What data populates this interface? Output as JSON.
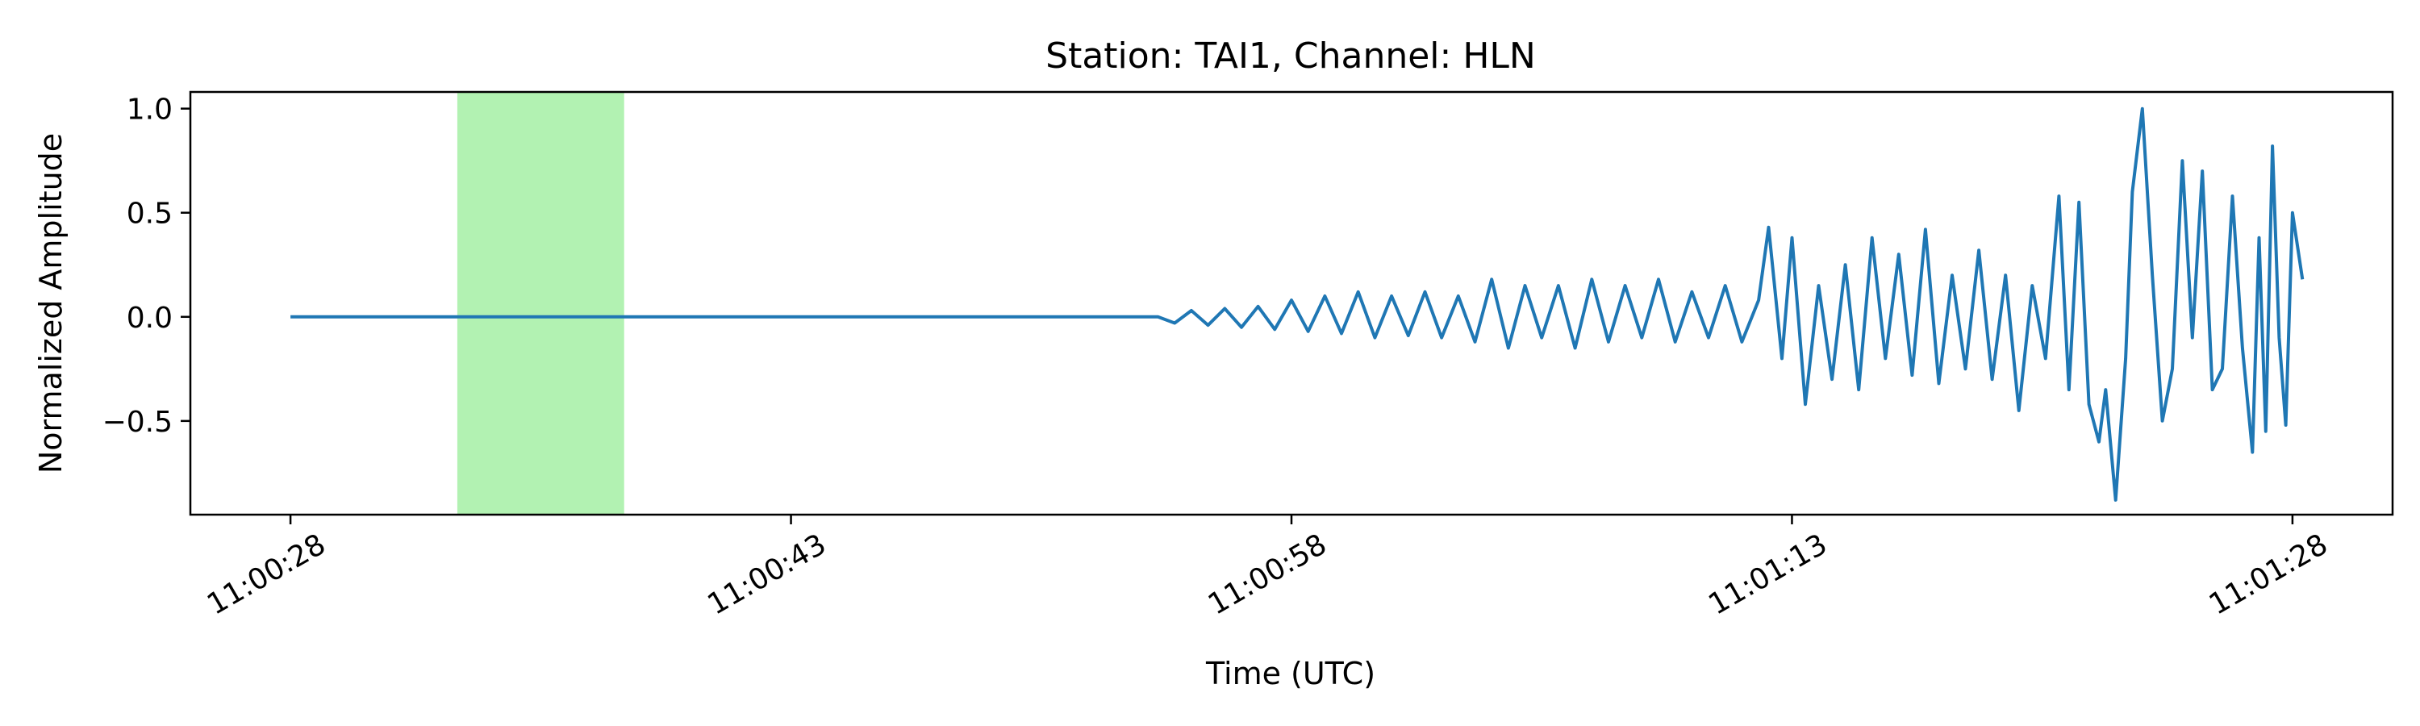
{
  "chart_data": {
    "type": "line",
    "title": "Station: TAI1, Channel: HLN",
    "xlabel": "Time (UTC)",
    "ylabel": "Normalized Amplitude",
    "x_start": "11:00:28",
    "x_end": "11:01:28",
    "xlim": [
      "11:00:25",
      "11:01:31"
    ],
    "ylim": [
      -0.95,
      1.08
    ],
    "xticks": [
      "11:00:28",
      "11:00:43",
      "11:00:58",
      "11:01:13",
      "11:01:28"
    ],
    "yticks": [
      -0.5,
      0.0,
      0.5,
      1.0
    ],
    "ytick_labels": [
      "−0.5",
      "0.0",
      "0.5",
      "1.0"
    ],
    "highlight_span": {
      "start": "11:00:33",
      "end": "11:00:38",
      "color": "#b2f2b2"
    },
    "line_color": "#1f77b4",
    "grid": false,
    "series": [
      {
        "points": [
          [
            "11:00:28",
            0.0
          ],
          [
            "11:00:30",
            0.0
          ],
          [
            "11:00:35",
            0.0
          ],
          [
            "11:00:40",
            0.0
          ],
          [
            "11:00:45",
            0.0
          ],
          [
            "11:00:50",
            0.0
          ],
          [
            "11:00:54",
            0.0
          ],
          [
            "11:00:54.5",
            -0.03
          ],
          [
            "11:00:55",
            0.03
          ],
          [
            "11:00:55.5",
            -0.04
          ],
          [
            "11:00:56",
            0.04
          ],
          [
            "11:00:56.5",
            -0.05
          ],
          [
            "11:00:57",
            0.05
          ],
          [
            "11:00:57.5",
            -0.06
          ],
          [
            "11:00:58",
            0.08
          ],
          [
            "11:00:58.5",
            -0.07
          ],
          [
            "11:00:59",
            0.1
          ],
          [
            "11:00:59.5",
            -0.08
          ],
          [
            "11:01:00",
            0.12
          ],
          [
            "11:01:00.5",
            -0.1
          ],
          [
            "11:01:01",
            0.1
          ],
          [
            "11:01:01.5",
            -0.09
          ],
          [
            "11:01:02",
            0.12
          ],
          [
            "11:01:02.5",
            -0.1
          ],
          [
            "11:01:03",
            0.1
          ],
          [
            "11:01:03.5",
            -0.12
          ],
          [
            "11:01:04",
            0.18
          ],
          [
            "11:01:04.5",
            -0.15
          ],
          [
            "11:01:05",
            0.15
          ],
          [
            "11:01:05.5",
            -0.1
          ],
          [
            "11:01:06",
            0.15
          ],
          [
            "11:01:06.5",
            -0.15
          ],
          [
            "11:01:07",
            0.18
          ],
          [
            "11:01:07.5",
            -0.12
          ],
          [
            "11:01:08",
            0.15
          ],
          [
            "11:01:08.5",
            -0.1
          ],
          [
            "11:01:09",
            0.18
          ],
          [
            "11:01:09.5",
            -0.12
          ],
          [
            "11:01:10",
            0.12
          ],
          [
            "11:01:10.5",
            -0.1
          ],
          [
            "11:01:11",
            0.15
          ],
          [
            "11:01:11.5",
            -0.12
          ],
          [
            "11:01:12",
            0.08
          ],
          [
            "11:01:12.3",
            0.43
          ],
          [
            "11:01:12.7",
            -0.2
          ],
          [
            "11:01:13",
            0.38
          ],
          [
            "11:01:13.4",
            -0.42
          ],
          [
            "11:01:13.8",
            0.15
          ],
          [
            "11:01:14.2",
            -0.3
          ],
          [
            "11:01:14.6",
            0.25
          ],
          [
            "11:01:15",
            -0.35
          ],
          [
            "11:01:15.4",
            0.38
          ],
          [
            "11:01:15.8",
            -0.2
          ],
          [
            "11:01:16.2",
            0.3
          ],
          [
            "11:01:16.6",
            -0.28
          ],
          [
            "11:01:17",
            0.42
          ],
          [
            "11:01:17.4",
            -0.32
          ],
          [
            "11:01:17.8",
            0.2
          ],
          [
            "11:01:18.2",
            -0.25
          ],
          [
            "11:01:18.6",
            0.32
          ],
          [
            "11:01:19",
            -0.3
          ],
          [
            "11:01:19.4",
            0.2
          ],
          [
            "11:01:19.8",
            -0.45
          ],
          [
            "11:01:20.2",
            0.15
          ],
          [
            "11:01:20.6",
            -0.2
          ],
          [
            "11:01:21",
            0.58
          ],
          [
            "11:01:21.3",
            -0.35
          ],
          [
            "11:01:21.6",
            0.55
          ],
          [
            "11:01:21.9",
            -0.42
          ],
          [
            "11:01:22.2",
            -0.6
          ],
          [
            "11:01:22.4",
            -0.35
          ],
          [
            "11:01:22.7",
            -0.88
          ],
          [
            "11:01:23",
            -0.2
          ],
          [
            "11:01:23.2",
            0.6
          ],
          [
            "11:01:23.5",
            1.0
          ],
          [
            "11:01:23.8",
            0.2
          ],
          [
            "11:01:24.1",
            -0.5
          ],
          [
            "11:01:24.4",
            -0.25
          ],
          [
            "11:01:24.7",
            0.75
          ],
          [
            "11:01:25",
            -0.1
          ],
          [
            "11:01:25.3",
            0.7
          ],
          [
            "11:01:25.6",
            -0.35
          ],
          [
            "11:01:25.9",
            -0.25
          ],
          [
            "11:01:26.2",
            0.58
          ],
          [
            "11:01:26.5",
            -0.15
          ],
          [
            "11:01:26.8",
            -0.65
          ],
          [
            "11:01:27",
            0.38
          ],
          [
            "11:01:27.2",
            -0.55
          ],
          [
            "11:01:27.4",
            0.82
          ],
          [
            "11:01:27.6",
            -0.1
          ],
          [
            "11:01:27.8",
            -0.52
          ],
          [
            "11:01:28",
            0.5
          ],
          [
            "11:01:28.3",
            0.18
          ]
        ]
      }
    ]
  }
}
